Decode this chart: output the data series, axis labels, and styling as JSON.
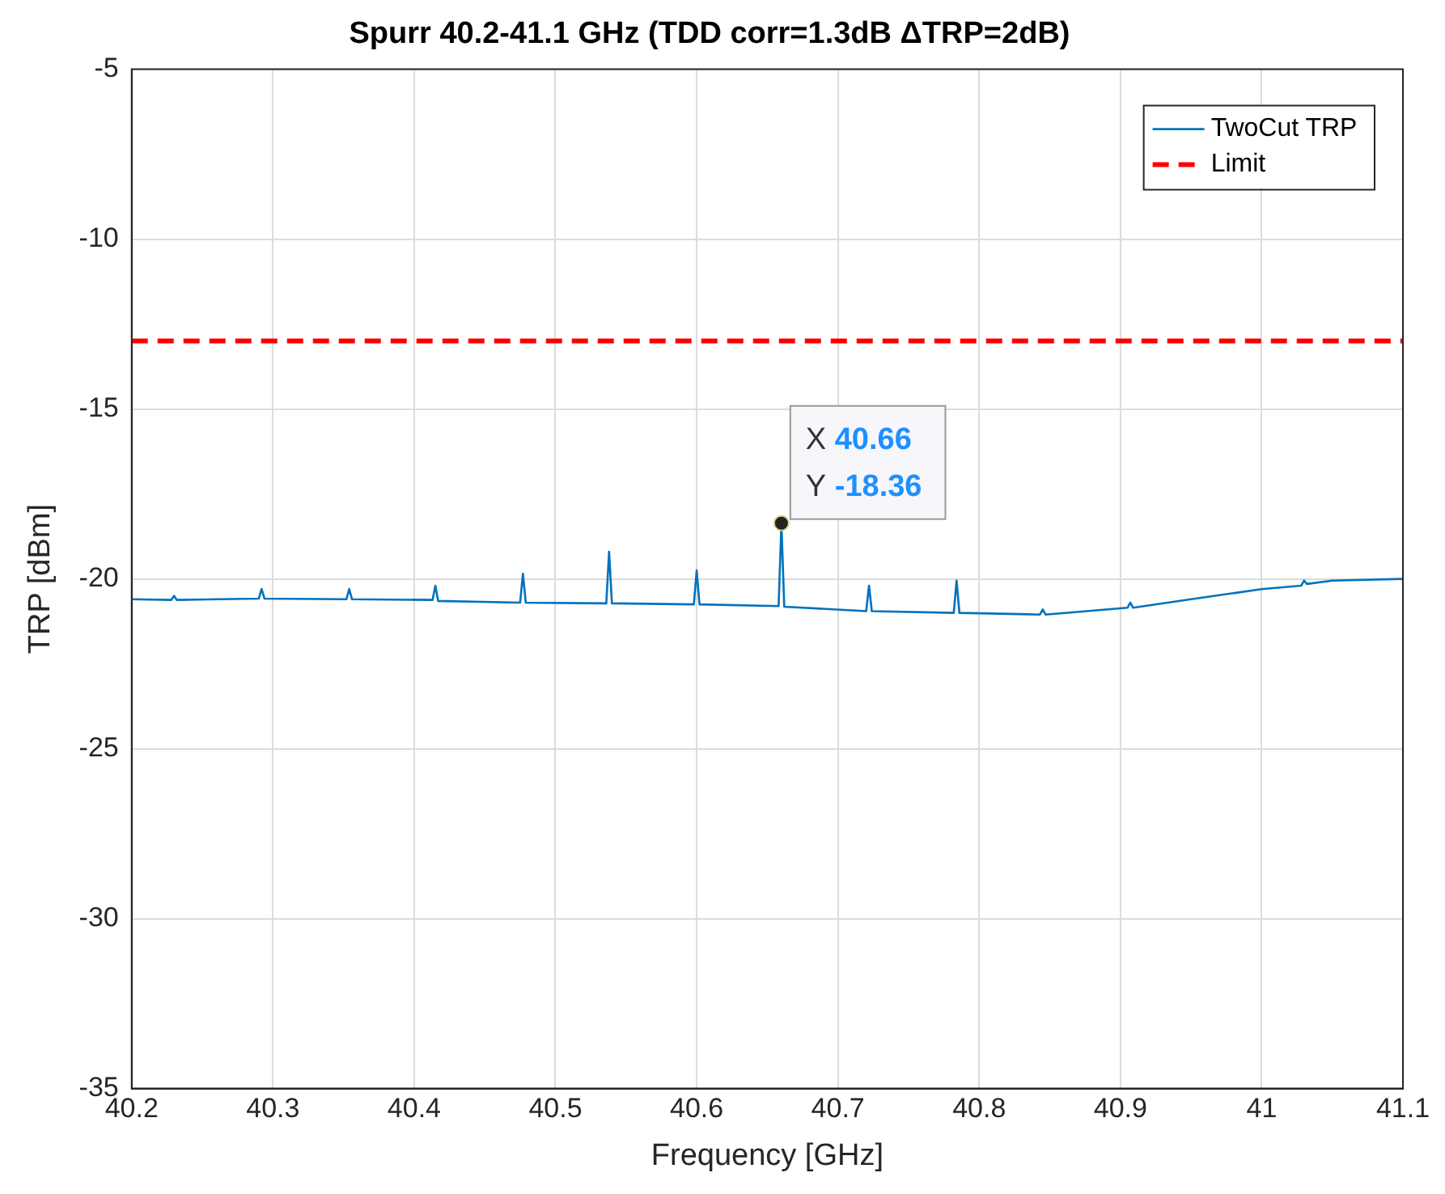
{
  "chart_data": {
    "type": "line",
    "title": "Spurr 40.2-41.1 GHz (TDD corr=1.3dB ΔTRP=2dB)",
    "xlabel": "Frequency [GHz]",
    "ylabel": "TRP [dBm]",
    "xlim": [
      40.2,
      41.1
    ],
    "xticks": [
      40.2,
      40.3,
      40.4,
      40.5,
      40.6,
      40.7,
      40.8,
      40.9,
      41,
      41.1
    ],
    "ylim": [
      -35,
      -5
    ],
    "yticks": [
      -35,
      -30,
      -25,
      -20,
      -15,
      -10,
      -5
    ],
    "grid": true,
    "legend": "top right",
    "marker": "none",
    "line_style": "solid",
    "series": [
      {
        "name": "TwoCut TRP",
        "color": "#0072bd",
        "x": [
          40.2,
          40.228,
          40.23,
          40.232,
          40.29,
          40.292,
          40.294,
          40.352,
          40.354,
          40.356,
          40.413,
          40.415,
          40.417,
          40.475,
          40.477,
          40.479,
          40.536,
          40.538,
          40.54,
          40.598,
          40.6,
          40.602,
          40.658,
          40.66,
          40.662,
          40.72,
          40.722,
          40.724,
          40.782,
          40.784,
          40.786,
          40.843,
          40.845,
          40.847,
          40.905,
          40.907,
          40.909,
          40.95,
          41.0,
          41.028,
          41.03,
          41.032,
          41.05,
          41.1
        ],
        "values": [
          -20.6,
          -20.62,
          -20.5,
          -20.62,
          -20.58,
          -20.3,
          -20.58,
          -20.6,
          -20.3,
          -20.6,
          -20.62,
          -20.2,
          -20.65,
          -20.7,
          -19.85,
          -20.7,
          -20.72,
          -19.2,
          -20.72,
          -20.75,
          -19.75,
          -20.75,
          -20.8,
          -18.36,
          -20.82,
          -20.95,
          -20.2,
          -20.95,
          -21.0,
          -20.05,
          -21.0,
          -21.05,
          -20.9,
          -21.05,
          -20.85,
          -20.7,
          -20.85,
          -20.6,
          -20.3,
          -20.2,
          -20.05,
          -20.15,
          -20.05,
          -20.0
        ]
      }
    ],
    "ref_lines": [
      {
        "axis": "y",
        "value": -13,
        "label": "Limit",
        "color": "#ff0000",
        "line_style": "dashed"
      }
    ],
    "annotations": [
      {
        "text": "X 40.66\nY -18.36",
        "x": 40.66,
        "y": -18.36
      }
    ]
  }
}
